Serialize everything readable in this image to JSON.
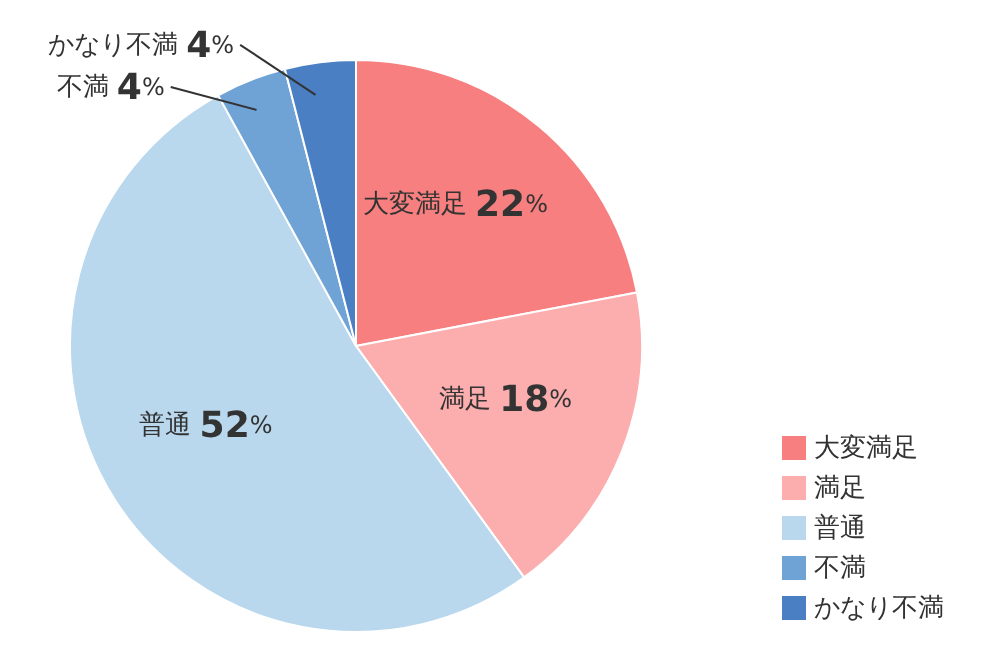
{
  "chart_data": {
    "type": "pie",
    "categories": [
      "大変満足",
      "満足",
      "普通",
      "不満",
      "かなり不満"
    ],
    "values": [
      22,
      18,
      52,
      4,
      4
    ],
    "colors": [
      "#f77f7f",
      "#fcadad",
      "#b9d8ee",
      "#6fa3d6",
      "#4a7fc4"
    ],
    "value_labels": [
      "22%",
      "18%",
      "52%",
      "4%",
      "4%"
    ],
    "legend": "bottom right"
  }
}
